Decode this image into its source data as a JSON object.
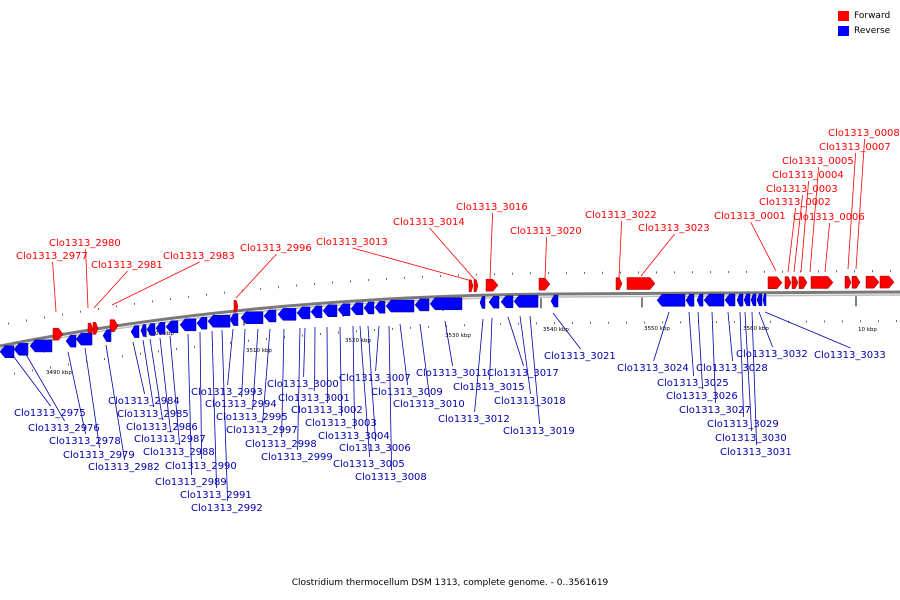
{
  "colors": {
    "forward": "#ff0000",
    "reverse": "#0000ff",
    "backbone": "#808080"
  },
  "legend": [
    {
      "label": "Forward",
      "color": "#ff0000"
    },
    {
      "label": "Reverse",
      "color": "#0000ff"
    }
  ],
  "caption": "Clostridium thermocellum DSM 1313, complete genome. - 0..3561619",
  "ruler_ticks": [
    "3490 kbp",
    "3500 kbp",
    "3510 kbp",
    "3520 kbp",
    "3530 kbp",
    "3540 kbp",
    "3550 kbp",
    "3560 kbp",
    "10 kbp"
  ],
  "forward_genes": [
    "Clo1313_2977",
    "Clo1313_2980",
    "Clo1313_2981",
    "Clo1313_2983",
    "Clo1313_2996",
    "Clo1313_3013",
    "Clo1313_3014",
    "Clo1313_3016",
    "Clo1313_3020",
    "Clo1313_3022",
    "Clo1313_3023",
    "Clo1313_0001",
    "Clo1313_0002",
    "Clo1313_0003",
    "Clo1313_0004",
    "Clo1313_0005",
    "Clo1313_0006",
    "Clo1313_0007",
    "Clo1313_0008"
  ],
  "reverse_genes": [
    "Clo1313_2975",
    "Clo1313_2976",
    "Clo1313_2978",
    "Clo1313_2979",
    "Clo1313_2982",
    "Clo1313_2984",
    "Clo1313_2985",
    "Clo1313_2986",
    "Clo1313_2987",
    "Clo1313_2988",
    "Clo1313_2989",
    "Clo1313_2990",
    "Clo1313_2991",
    "Clo1313_2992",
    "Clo1313_2993",
    "Clo1313_2994",
    "Clo1313_2995",
    "Clo1313_2997",
    "Clo1313_2998",
    "Clo1313_2999",
    "Clo1313_3000",
    "Clo1313_3001",
    "Clo1313_3002",
    "Clo1313_3003",
    "Clo1313_3004",
    "Clo1313_3005",
    "Clo1313_3006",
    "Clo1313_3007",
    "Clo1313_3008",
    "Clo1313_3009",
    "Clo1313_3010",
    "Clo1313_3011",
    "Clo1313_3012",
    "Clo1313_3015",
    "Clo1313_3017",
    "Clo1313_3018",
    "Clo1313_3019",
    "Clo1313_3021",
    "Clo1313_3024",
    "Clo1313_3025",
    "Clo1313_3026",
    "Clo1313_3027",
    "Clo1313_3028",
    "Clo1313_3029",
    "Clo1313_3030",
    "Clo1313_3031",
    "Clo1313_3032",
    "Clo1313_3033"
  ]
}
